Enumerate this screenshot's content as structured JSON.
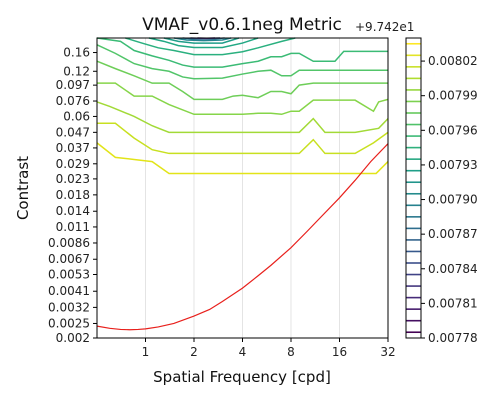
{
  "chart_data": {
    "type": "contour",
    "title": "VMAF_v0.6.1neg Metric",
    "xlabel": "Spatial Frequency [cpd]",
    "ylabel": "Contrast",
    "x_scale": "log2",
    "y_scale": "log",
    "xlim": [
      0.5,
      32
    ],
    "ylim": [
      0.002,
      0.2
    ],
    "x_ticks": [
      {
        "value": 1,
        "label": "1"
      },
      {
        "value": 2,
        "label": "2"
      },
      {
        "value": 4,
        "label": "4"
      },
      {
        "value": 8,
        "label": "8"
      },
      {
        "value": 16,
        "label": "16"
      },
      {
        "value": 32,
        "label": "32"
      }
    ],
    "y_ticks": [
      {
        "value": 0.002,
        "label": "0.002"
      },
      {
        "value": 0.0025,
        "label": "0.0025"
      },
      {
        "value": 0.0032,
        "label": "0.0032"
      },
      {
        "value": 0.0041,
        "label": "0.0041"
      },
      {
        "value": 0.0053,
        "label": "0.0053"
      },
      {
        "value": 0.0067,
        "label": "0.0067"
      },
      {
        "value": 0.0086,
        "label": "0.0086"
      },
      {
        "value": 0.011,
        "label": "0.011"
      },
      {
        "value": 0.014,
        "label": "0.014"
      },
      {
        "value": 0.018,
        "label": "0.018"
      },
      {
        "value": 0.023,
        "label": "0.023"
      },
      {
        "value": 0.029,
        "label": "0.029"
      },
      {
        "value": 0.037,
        "label": "0.037"
      },
      {
        "value": 0.047,
        "label": "0.047"
      },
      {
        "value": 0.06,
        "label": "0.06"
      },
      {
        "value": 0.076,
        "label": "0.076"
      },
      {
        "value": 0.097,
        "label": "0.097"
      },
      {
        "value": 0.12,
        "label": "0.12"
      },
      {
        "value": 0.16,
        "label": "0.16"
      }
    ],
    "colorbar_offset_label": "+9.742e1",
    "colorbar": {
      "range": [
        0.00778,
        0.00804
      ],
      "levels": 26,
      "ticks": [
        {
          "value": 0.00778,
          "label": "0.00778"
        },
        {
          "value": 0.00781,
          "label": "0.00781"
        },
        {
          "value": 0.00784,
          "label": "0.00784"
        },
        {
          "value": 0.00787,
          "label": "0.00787"
        },
        {
          "value": 0.0079,
          "label": "0.00790"
        },
        {
          "value": 0.00793,
          "label": "0.00793"
        },
        {
          "value": 0.00796,
          "label": "0.00796"
        },
        {
          "value": 0.00799,
          "label": "0.00799"
        },
        {
          "value": 0.00802,
          "label": "0.00802"
        }
      ]
    },
    "contours": [
      {
        "color": "#e2e418",
        "points": [
          [
            0.5,
            0.04
          ],
          [
            0.65,
            0.032
          ],
          [
            0.85,
            0.031
          ],
          [
            1.1,
            0.03
          ],
          [
            1.4,
            0.025
          ],
          [
            2,
            0.025
          ],
          [
            4,
            0.025
          ],
          [
            8,
            0.025
          ],
          [
            16,
            0.025
          ],
          [
            27,
            0.025
          ],
          [
            32,
            0.03
          ]
        ]
      },
      {
        "color": "#c8e020",
        "points": [
          [
            0.5,
            0.054
          ],
          [
            0.65,
            0.054
          ],
          [
            0.85,
            0.043
          ],
          [
            1.1,
            0.036
          ],
          [
            1.4,
            0.034
          ],
          [
            2,
            0.034
          ],
          [
            4,
            0.034
          ],
          [
            8,
            0.034
          ],
          [
            9,
            0.034
          ],
          [
            11,
            0.042
          ],
          [
            13,
            0.034
          ],
          [
            16,
            0.034
          ],
          [
            20,
            0.034
          ],
          [
            26,
            0.04
          ],
          [
            32,
            0.047
          ]
        ]
      },
      {
        "color": "#a2da37",
        "points": [
          [
            0.5,
            0.075
          ],
          [
            0.6,
            0.07
          ],
          [
            0.85,
            0.06
          ],
          [
            1.1,
            0.052
          ],
          [
            1.4,
            0.047
          ],
          [
            2,
            0.047
          ],
          [
            4,
            0.047
          ],
          [
            6,
            0.047
          ],
          [
            8,
            0.047
          ],
          [
            9,
            0.047
          ],
          [
            11,
            0.058
          ],
          [
            13,
            0.047
          ],
          [
            16,
            0.047
          ],
          [
            20,
            0.047
          ],
          [
            28,
            0.05
          ],
          [
            32,
            0.058
          ]
        ]
      },
      {
        "color": "#86d549",
        "points": [
          [
            0.5,
            0.1
          ],
          [
            0.65,
            0.1
          ],
          [
            0.85,
            0.082
          ],
          [
            1.1,
            0.082
          ],
          [
            1.4,
            0.072
          ],
          [
            2,
            0.062
          ],
          [
            3,
            0.062
          ],
          [
            4,
            0.062
          ],
          [
            5,
            0.063
          ],
          [
            6,
            0.063
          ],
          [
            7,
            0.062
          ],
          [
            8,
            0.065
          ],
          [
            9,
            0.065
          ],
          [
            11,
            0.077
          ],
          [
            13,
            0.077
          ],
          [
            16,
            0.077
          ],
          [
            20,
            0.077
          ],
          [
            26,
            0.065
          ],
          [
            28,
            0.075
          ],
          [
            32,
            0.078
          ]
        ]
      },
      {
        "color": "#6ece58",
        "points": [
          [
            0.5,
            0.14
          ],
          [
            0.65,
            0.125
          ],
          [
            0.85,
            0.112
          ],
          [
            1.1,
            0.1
          ],
          [
            1.4,
            0.1
          ],
          [
            1.7,
            0.088
          ],
          [
            2,
            0.078
          ],
          [
            3,
            0.078
          ],
          [
            3.5,
            0.082
          ],
          [
            4,
            0.083
          ],
          [
            5,
            0.08
          ],
          [
            6,
            0.088
          ],
          [
            7,
            0.088
          ],
          [
            8,
            0.085
          ],
          [
            9,
            0.097
          ],
          [
            11,
            0.1
          ],
          [
            13,
            0.1
          ],
          [
            16,
            0.1
          ],
          [
            20,
            0.1
          ],
          [
            32,
            0.1
          ]
        ]
      },
      {
        "color": "#52c569",
        "points": [
          [
            0.5,
            0.18
          ],
          [
            0.65,
            0.158
          ],
          [
            0.85,
            0.135
          ],
          [
            1.1,
            0.125
          ],
          [
            1.4,
            0.12
          ],
          [
            1.7,
            0.11
          ],
          [
            2,
            0.107
          ],
          [
            3,
            0.108
          ],
          [
            4,
            0.115
          ],
          [
            5,
            0.12
          ],
          [
            6,
            0.122
          ],
          [
            7,
            0.112
          ],
          [
            8,
            0.112
          ],
          [
            9,
            0.122
          ],
          [
            11,
            0.122
          ],
          [
            13,
            0.122
          ],
          [
            16,
            0.122
          ],
          [
            20,
            0.122
          ],
          [
            32,
            0.122
          ]
        ]
      },
      {
        "color": "#3bbb75",
        "points": [
          [
            0.5,
            0.2
          ],
          [
            0.7,
            0.19
          ],
          [
            0.85,
            0.165
          ],
          [
            1.1,
            0.152
          ],
          [
            1.4,
            0.142
          ],
          [
            1.7,
            0.132
          ],
          [
            2,
            0.128
          ],
          [
            3,
            0.128
          ],
          [
            4,
            0.135
          ],
          [
            5,
            0.14
          ],
          [
            6,
            0.15
          ],
          [
            7,
            0.15
          ],
          [
            8,
            0.158
          ],
          [
            9,
            0.158
          ],
          [
            11,
            0.14
          ],
          [
            13,
            0.14
          ],
          [
            15,
            0.14
          ],
          [
            17,
            0.163
          ],
          [
            20,
            0.163
          ],
          [
            32,
            0.163
          ]
        ]
      },
      {
        "color": "#2ab07f",
        "points": [
          [
            0.75,
            0.2
          ],
          [
            0.95,
            0.185
          ],
          [
            1.2,
            0.172
          ],
          [
            1.5,
            0.165
          ],
          [
            2,
            0.155
          ],
          [
            3,
            0.155
          ],
          [
            4,
            0.162
          ],
          [
            5,
            0.172
          ],
          [
            7,
            0.19
          ],
          [
            8.5,
            0.2
          ]
        ]
      },
      {
        "color": "#22a884",
        "points": [
          [
            1.05,
            0.2
          ],
          [
            1.3,
            0.19
          ],
          [
            1.6,
            0.178
          ],
          [
            2,
            0.173
          ],
          [
            3,
            0.173
          ],
          [
            4,
            0.185
          ],
          [
            5,
            0.2
          ]
        ]
      },
      {
        "color": "#1f9e89",
        "points": [
          [
            1.3,
            0.2
          ],
          [
            1.6,
            0.19
          ],
          [
            2,
            0.185
          ],
          [
            3,
            0.185
          ],
          [
            3.8,
            0.2
          ]
        ]
      },
      {
        "color": "#25838e",
        "points": [
          [
            1.5,
            0.2
          ],
          [
            1.8,
            0.194
          ],
          [
            2.3,
            0.192
          ],
          [
            3,
            0.194
          ],
          [
            3.4,
            0.2
          ]
        ]
      },
      {
        "color": "#31688e",
        "points": [
          [
            1.7,
            0.2
          ],
          [
            2,
            0.197
          ],
          [
            2.6,
            0.197
          ],
          [
            3.1,
            0.2
          ]
        ]
      },
      {
        "color": "#3e4989",
        "points": [
          [
            1.9,
            0.2
          ],
          [
            2.3,
            0.1985
          ],
          [
            2.9,
            0.2
          ]
        ]
      },
      {
        "color": "#472d7b",
        "points": [
          [
            2.1,
            0.2
          ],
          [
            2.4,
            0.1993
          ],
          [
            2.7,
            0.2
          ]
        ]
      }
    ],
    "series": [
      {
        "color": "#e8201c",
        "points": [
          [
            0.5,
            0.0024
          ],
          [
            0.6,
            0.00232
          ],
          [
            0.7,
            0.00228
          ],
          [
            0.8,
            0.00227
          ],
          [
            0.9,
            0.00228
          ],
          [
            1,
            0.0023
          ],
          [
            1.2,
            0.00237
          ],
          [
            1.5,
            0.0025
          ],
          [
            2,
            0.0028
          ],
          [
            2.5,
            0.0031
          ],
          [
            3,
            0.0035
          ],
          [
            4,
            0.0043
          ],
          [
            5,
            0.0052
          ],
          [
            6,
            0.0061
          ],
          [
            8,
            0.008
          ],
          [
            10,
            0.0102
          ],
          [
            12,
            0.0125
          ],
          [
            16,
            0.0172
          ],
          [
            20,
            0.0225
          ],
          [
            25,
            0.03
          ],
          [
            32,
            0.0395
          ]
        ]
      }
    ]
  }
}
